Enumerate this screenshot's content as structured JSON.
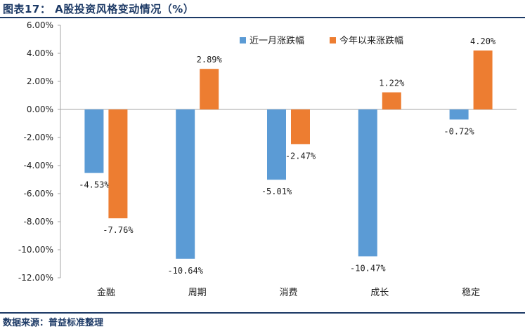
{
  "title": "图表17：  A股投资风格变动情况（%）",
  "source": "数据来源：普益标准整理",
  "chart_data": {
    "type": "bar",
    "categories": [
      "金融",
      "周期",
      "消费",
      "成长",
      "稳定"
    ],
    "series": [
      {
        "name": "近一月涨跌幅",
        "values": [
          -4.53,
          -10.64,
          -5.01,
          -10.47,
          -0.72
        ],
        "color": "#5b9bd5"
      },
      {
        "name": "今年以来涨跌幅",
        "values": [
          -7.76,
          2.89,
          -2.47,
          1.22,
          4.2
        ],
        "color": "#ed7d31"
      }
    ],
    "data_labels": [
      [
        "-4.53%",
        "-10.64%",
        "-5.01%",
        "-10.47%",
        "-0.72%"
      ],
      [
        "-7.76%",
        "2.89%",
        "-2.47%",
        "1.22%",
        "4.20%"
      ]
    ],
    "ylim": [
      -12,
      6
    ],
    "yticks": [
      6,
      4,
      2,
      0,
      -2,
      -4,
      -6,
      -8,
      -10,
      -12
    ],
    "ytick_labels": [
      "6.00%",
      "4.00%",
      "2.00%",
      "0.00%",
      "-2.00%",
      "-4.00%",
      "-6.00%",
      "-8.00%",
      "-10.00%",
      "-12.00%"
    ],
    "grid": false,
    "legend": "top-right",
    "xlabel": "",
    "ylabel": ""
  }
}
